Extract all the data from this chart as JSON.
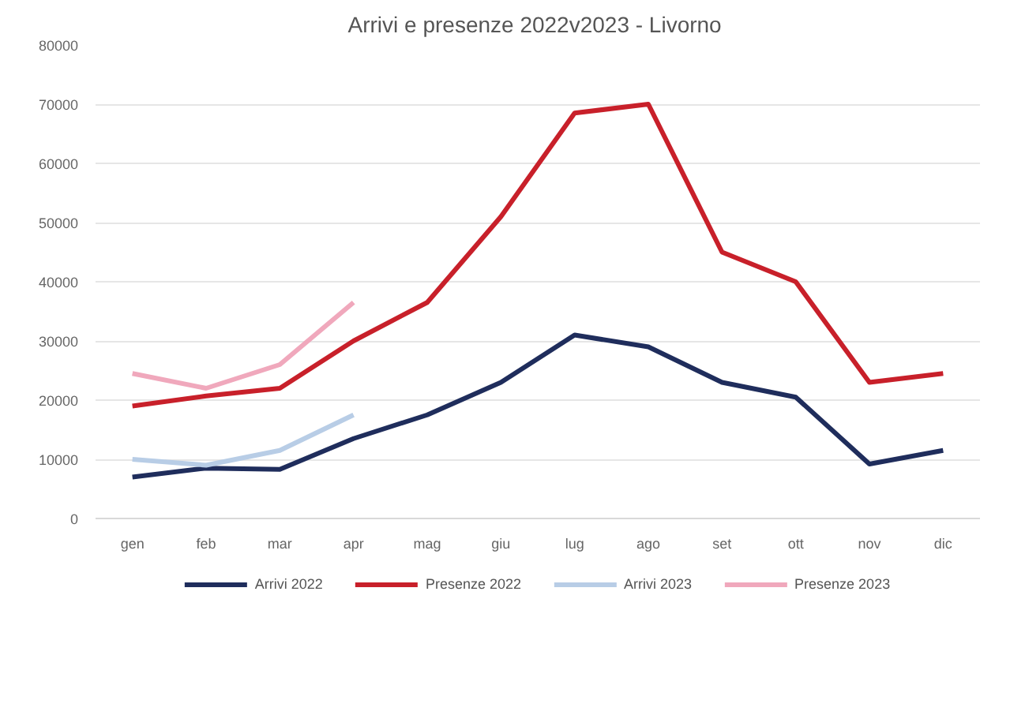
{
  "chart_data": {
    "type": "line",
    "title": "Arrivi e presenze 2022v2023 -  Livorno",
    "categories": [
      "gen",
      "feb",
      "mar",
      "apr",
      "mag",
      "giu",
      "lug",
      "ago",
      "set",
      "ott",
      "nov",
      "dic"
    ],
    "series": [
      {
        "name": "Arrivi 2022",
        "color": "#1f2d5c",
        "values": [
          7000,
          8500,
          8300,
          13500,
          17500,
          23000,
          31000,
          29000,
          23000,
          20500,
          9200,
          11500
        ]
      },
      {
        "name": "Presenze 2022",
        "color": "#c8202a",
        "values": [
          19000,
          20700,
          22000,
          30000,
          36500,
          51000,
          68500,
          70000,
          45000,
          40000,
          23000,
          24500
        ]
      },
      {
        "name": "Arrivi 2023",
        "color": "#b8cde6",
        "values": [
          10000,
          9000,
          11500,
          17500,
          null,
          null,
          null,
          null,
          null,
          null,
          null,
          null
        ]
      },
      {
        "name": "Presenze 2023",
        "color": "#f0a8bc",
        "values": [
          24500,
          22000,
          26000,
          36500,
          null,
          null,
          null,
          null,
          null,
          null,
          null,
          null
        ]
      }
    ],
    "ylim": [
      0,
      80000
    ],
    "yticks": [
      0,
      10000,
      20000,
      30000,
      40000,
      50000,
      60000,
      70000,
      80000
    ],
    "grid": "y",
    "legend": "bottom",
    "marker": "none",
    "line_style": "solid"
  }
}
